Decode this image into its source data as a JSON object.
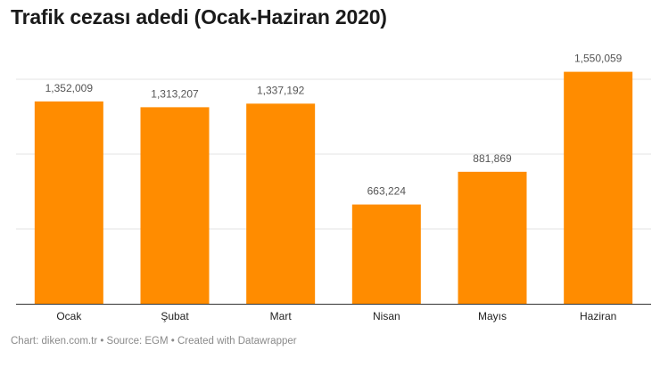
{
  "title": "Trafik cezası adedi (Ocak-Haziran 2020)",
  "footer": "Chart: diken.com.tr • Source: EGM • Created with Datawrapper",
  "colors": {
    "bar": "#ff8c00",
    "grid": "#e3e3e3",
    "axis": "#333333"
  },
  "chart_data": {
    "type": "bar",
    "categories": [
      "Ocak",
      "Şubat",
      "Mart",
      "Nisan",
      "Mayıs",
      "Haziran"
    ],
    "values": [
      1352009,
      1313207,
      1337192,
      663224,
      881869,
      1550059
    ],
    "value_labels": [
      "1,352,009",
      "1,313,207",
      "1,337,192",
      "663,224",
      "881,869",
      "1,550,059"
    ],
    "title": "Trafik cezası adedi (Ocak-Haziran 2020)",
    "ylim": [
      0,
      1500000
    ],
    "grid": true
  }
}
